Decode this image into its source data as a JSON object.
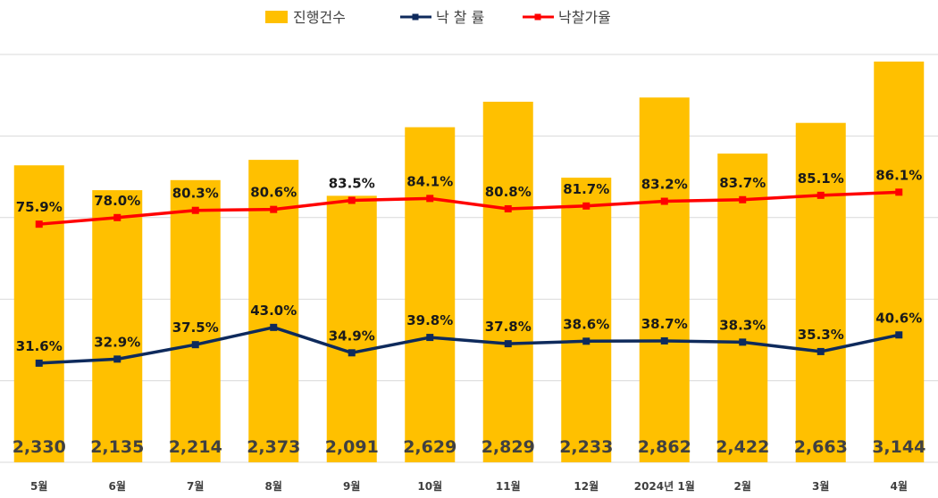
{
  "chart_data": {
    "type": "bar",
    "categories": [
      "5월",
      "6월",
      "7월",
      "8월",
      "9월",
      "10월",
      "11월",
      "12월",
      "2024년 1월",
      "2월",
      "3월",
      "4월"
    ],
    "series": [
      {
        "name": "진행건수",
        "type": "bar",
        "color": "#FFC000",
        "values": [
          2330,
          2135,
          2214,
          2373,
          2091,
          2629,
          2829,
          2233,
          2862,
          2422,
          2663,
          3144
        ],
        "labels": [
          "2,330",
          "2,135",
          "2,214",
          "2,373",
          "2,091",
          "2,629",
          "2,829",
          "2,233",
          "2,862",
          "2,422",
          "2,663",
          "3,144"
        ]
      },
      {
        "name": "낙 찰 률",
        "type": "line",
        "color": "#0E2A5C",
        "values": [
          31.6,
          32.9,
          37.5,
          43.0,
          34.9,
          39.8,
          37.8,
          38.6,
          38.7,
          38.3,
          35.3,
          40.6
        ],
        "labels": [
          "31.6%",
          "32.9%",
          "37.5%",
          "43.0%",
          "34.9%",
          "39.8%",
          "37.8%",
          "38.6%",
          "38.7%",
          "38.3%",
          "35.3%",
          "40.6%"
        ]
      },
      {
        "name": "낙찰가율",
        "type": "line",
        "color": "#FF0000",
        "values": [
          75.9,
          78.0,
          80.3,
          80.6,
          83.5,
          84.1,
          80.8,
          81.7,
          83.2,
          83.7,
          85.1,
          86.1
        ],
        "labels": [
          "75.9%",
          "78.0%",
          "80.3%",
          "80.6%",
          "83.5%",
          "84.1%",
          "80.8%",
          "81.7%",
          "83.2%",
          "83.7%",
          "85.1%",
          "86.1%"
        ]
      }
    ],
    "legend": "top-center",
    "grid": true,
    "ylim_bar": [
      0,
      3200
    ],
    "ylim_rate": [
      0,
      130
    ]
  }
}
